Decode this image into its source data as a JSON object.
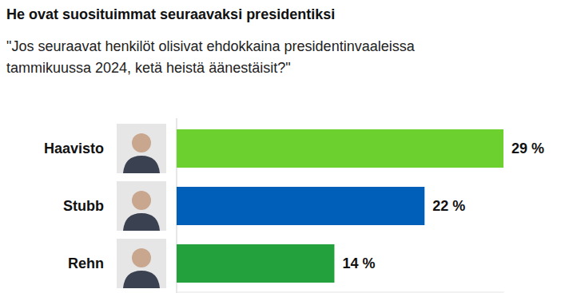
{
  "chart_data": {
    "type": "bar",
    "orientation": "horizontal",
    "title": "He ovat suosituimmat seuraavaksi presidentiksi",
    "subtitle": [
      "\"Jos seuraavat henkilöt olisivat ehdokkaina presidentinvaaleissa",
      "tammikuussa 2024, ketä heistä äänestäisit?\""
    ],
    "categories": [
      "Haavisto",
      "Stubb",
      "Rehn"
    ],
    "values": [
      29,
      22,
      14
    ],
    "value_labels": [
      "29 %",
      "22 %",
      "14 %"
    ],
    "colors": [
      "#6cd12f",
      "#005fb9",
      "#22a13c"
    ],
    "xlim": [
      0,
      29
    ],
    "xticks": [
      0
    ],
    "grid": true,
    "data_labels": true,
    "tick_labels": "y"
  }
}
